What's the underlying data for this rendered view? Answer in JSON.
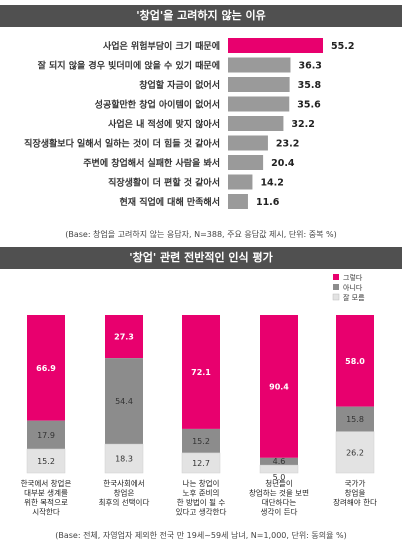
{
  "chart1": {
    "title": "'창업'을 고려하지 않는 이유",
    "note": "(Base: 창업을 고려하지 않는 응답자, N=388, 주요 응답값 제시, 단위: 중복 %)",
    "colors": {
      "highlight": "#e8006e",
      "bar": "#9a9a9a",
      "title_bg": "#505050"
    }
  },
  "chart2": {
    "title": "'창업' 관련 전반적인 인식 평가",
    "note": "(Base: 전체, 자영업자 제외한 전국 만 19세~59세 남녀, N=1,000, 단위: 동의율 %)",
    "colors": {
      "agree": "#e8006e",
      "disagree": "#8c8c8c",
      "unsure": "#e3e3e3"
    }
  },
  "chart_data": [
    {
      "type": "bar",
      "orientation": "horizontal",
      "title": "'창업'을 고려하지 않는 이유",
      "categories": [
        "사업은 위험부담이 크기 때문에",
        "잘 되지 않을 경우 빚더미에 앉을 수 있기 때문에",
        "창업할 자금이 없어서",
        "성공할만한 창업 아이템이 없어서",
        "사업은 내 적성에 맞지 않아서",
        "직장생활보다 일해서 일하는 것이 더 힘들 것 같아서",
        "주변에 창업해서 실패한 사람을 봐서",
        "직장생활이 더 편할 것 같아서",
        "현재 직업에 대해 만족해서"
      ],
      "values": [
        55.2,
        36.3,
        35.8,
        35.6,
        32.2,
        23.2,
        20.4,
        14.2,
        11.6
      ],
      "highlighted_index": 0
    },
    {
      "type": "bar",
      "stacked": true,
      "title": "'창업' 관련 전반적인 인식 평가",
      "categories": [
        [
          "한국에서 창업은",
          "대부분 생계를",
          "위한 목적으로",
          "시작한다"
        ],
        [
          "한국사회에서",
          "창업은",
          "최후의 선택이다"
        ],
        [
          "나는 창업이",
          "노후 준비의",
          "한 방법이 될 수",
          "있다고 생각한다"
        ],
        [
          "청년들이",
          "창업하는 것을 보면",
          "대단하다는",
          "생각이 든다"
        ],
        [
          "국가가",
          "창업을",
          "장려해야 한다"
        ]
      ],
      "series": [
        {
          "name": "그렇다",
          "values": [
            66.9,
            27.3,
            72.1,
            90.4,
            58.0
          ],
          "labels": [
            "66.9",
            "27.3",
            "72.1",
            "90.4",
            "58.0"
          ]
        },
        {
          "name": "아니다",
          "values": [
            17.9,
            54.4,
            15.2,
            4.6,
            15.8
          ],
          "labels": [
            "17.9",
            "54.4",
            "15.2",
            "4.6",
            "15.8"
          ]
        },
        {
          "name": "잘 모름",
          "values": [
            15.2,
            18.3,
            12.7,
            5.0,
            26.2
          ],
          "labels": [
            "15.2",
            "18.3",
            "12.7",
            "5.0",
            "26.2"
          ]
        }
      ],
      "legend": "top-right",
      "ylim": [
        0,
        100
      ]
    }
  ]
}
